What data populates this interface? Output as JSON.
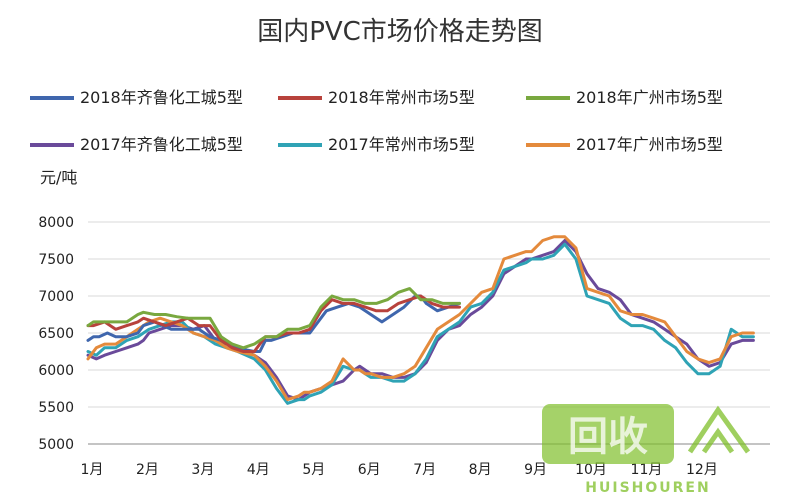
{
  "chart_data": {
    "type": "line",
    "title": "国内PVC市场价格走势图",
    "unit_label": "元/吨",
    "categories": [
      "1月",
      "2月",
      "3月",
      "4月",
      "5月",
      "6月",
      "7月",
      "8月",
      "9月",
      "10月",
      "11月",
      "12月"
    ],
    "ylim": [
      5000,
      8000
    ],
    "yticks": [
      5000,
      5500,
      6000,
      6500,
      7000,
      7500,
      8000
    ],
    "grid": true,
    "legend_position": "top",
    "series": [
      {
        "name": "2018年齐鲁化工城5型",
        "color": "#3f66ad",
        "x": [
          0.0,
          0.1,
          0.2,
          0.35,
          0.5,
          0.7,
          0.9,
          1.0,
          1.2,
          1.5,
          1.6,
          1.8,
          2.0,
          2.2,
          2.4,
          2.6,
          2.8,
          3.0,
          3.1,
          3.2,
          3.3,
          3.5,
          3.7,
          3.9,
          4.0,
          4.1,
          4.3,
          4.5,
          4.7,
          4.9,
          5.0,
          5.1,
          5.3,
          5.5,
          5.7,
          5.9,
          6.0,
          6.1,
          6.3,
          6.5,
          6.7
        ],
        "values": [
          6400,
          6450,
          6450,
          6500,
          6450,
          6450,
          6500,
          6600,
          6650,
          6550,
          6550,
          6550,
          6550,
          6450,
          6400,
          6350,
          6280,
          6250,
          6250,
          6400,
          6400,
          6450,
          6500,
          6500,
          6500,
          6600,
          6800,
          6850,
          6900,
          6850,
          6800,
          6750,
          6650,
          6750,
          6850,
          7000,
          7000,
          6900,
          6800,
          6850,
          6900
        ]
      },
      {
        "name": "2018年常州市场5型",
        "color": "#b8423c",
        "x": [
          0.0,
          0.1,
          0.3,
          0.5,
          0.7,
          0.9,
          1.0,
          1.2,
          1.4,
          1.6,
          1.8,
          2.0,
          2.2,
          2.4,
          2.6,
          2.8,
          3.0,
          3.2,
          3.4,
          3.6,
          3.8,
          4.0,
          4.2,
          4.4,
          4.6,
          4.8,
          5.0,
          5.2,
          5.4,
          5.6,
          5.8,
          6.0,
          6.2,
          6.4,
          6.6,
          6.7
        ],
        "values": [
          6600,
          6600,
          6650,
          6550,
          6600,
          6650,
          6700,
          6650,
          6600,
          6650,
          6700,
          6600,
          6600,
          6400,
          6300,
          6250,
          6250,
          6450,
          6450,
          6500,
          6500,
          6550,
          6800,
          6950,
          6900,
          6900,
          6850,
          6800,
          6800,
          6900,
          6950,
          7000,
          6900,
          6850,
          6850,
          6850
        ]
      },
      {
        "name": "2018年广州市场5型",
        "color": "#79a83f",
        "x": [
          0.0,
          0.1,
          0.3,
          0.5,
          0.7,
          0.9,
          1.0,
          1.2,
          1.4,
          1.6,
          1.8,
          2.0,
          2.2,
          2.4,
          2.6,
          2.8,
          3.0,
          3.2,
          3.4,
          3.6,
          3.8,
          4.0,
          4.2,
          4.4,
          4.6,
          4.8,
          5.0,
          5.2,
          5.4,
          5.6,
          5.8,
          6.0,
          6.2,
          6.4,
          6.6,
          6.7
        ],
        "values": [
          6600,
          6650,
          6650,
          6650,
          6650,
          6750,
          6780,
          6750,
          6750,
          6720,
          6700,
          6700,
          6700,
          6450,
          6350,
          6300,
          6350,
          6450,
          6450,
          6550,
          6550,
          6600,
          6850,
          7000,
          6950,
          6950,
          6900,
          6900,
          6950,
          7050,
          7100,
          6950,
          6950,
          6900,
          6900,
          6900
        ]
      }
    ],
    "series_2017": [
      {
        "name": "2017年齐鲁化工城5型",
        "color": "#6a4a9a",
        "x": [
          0.0,
          0.15,
          0.3,
          0.5,
          0.7,
          0.9,
          1.0,
          1.1,
          1.3,
          1.5,
          1.7,
          1.9,
          2.1,
          2.3,
          2.5,
          2.7,
          3.0,
          3.2,
          3.4,
          3.6,
          3.8,
          3.9,
          4.0,
          4.2,
          4.4,
          4.6,
          4.8,
          4.9,
          5.0,
          5.1,
          5.3,
          5.5,
          5.7,
          5.9,
          6.1,
          6.3,
          6.5,
          6.7,
          6.9,
          7.1,
          7.3,
          7.5,
          7.7,
          7.9,
          8.0,
          8.2,
          8.4,
          8.6,
          8.8,
          9.0,
          9.2,
          9.4,
          9.6,
          9.8,
          10.0,
          10.2,
          10.4,
          10.6,
          10.8,
          11.0,
          11.2,
          11.4,
          11.6,
          11.8,
          12.0
        ],
        "values": [
          6200,
          6150,
          6200,
          6250,
          6300,
          6350,
          6400,
          6500,
          6550,
          6600,
          6600,
          6550,
          6600,
          6400,
          6350,
          6300,
          6200,
          6100,
          5900,
          5650,
          5600,
          5650,
          5700,
          5750,
          5800,
          5850,
          6000,
          6050,
          6000,
          5950,
          5950,
          5900,
          5900,
          5950,
          6100,
          6400,
          6550,
          6600,
          6750,
          6850,
          7000,
          7300,
          7400,
          7500,
          7500,
          7550,
          7600,
          7750,
          7600,
          7300,
          7100,
          7050,
          6950,
          6750,
          6700,
          6650,
          6550,
          6450,
          6350,
          6150,
          6050,
          6100,
          6350,
          6400,
          6400
        ]
      },
      {
        "name": "2017年常州市场5型",
        "color": "#2fa3b5",
        "x": [
          0.0,
          0.15,
          0.3,
          0.5,
          0.7,
          0.9,
          1.0,
          1.1,
          1.3,
          1.5,
          1.7,
          1.9,
          2.1,
          2.3,
          2.5,
          2.7,
          3.0,
          3.2,
          3.4,
          3.6,
          3.8,
          3.9,
          4.0,
          4.2,
          4.4,
          4.6,
          4.8,
          4.9,
          5.0,
          5.1,
          5.3,
          5.5,
          5.7,
          5.9,
          6.1,
          6.3,
          6.5,
          6.7,
          6.9,
          7.1,
          7.3,
          7.5,
          7.7,
          7.9,
          8.0,
          8.2,
          8.4,
          8.6,
          8.8,
          9.0,
          9.2,
          9.4,
          9.6,
          9.8,
          10.0,
          10.2,
          10.4,
          10.6,
          10.8,
          11.0,
          11.2,
          11.4,
          11.6,
          11.8,
          12.0
        ],
        "values": [
          6250,
          6200,
          6300,
          6300,
          6400,
          6450,
          6500,
          6550,
          6600,
          6650,
          6650,
          6500,
          6450,
          6350,
          6300,
          6250,
          6150,
          6000,
          5750,
          5550,
          5600,
          5600,
          5650,
          5700,
          5800,
          6050,
          6000,
          6000,
          5950,
          5900,
          5900,
          5850,
          5850,
          5950,
          6150,
          6450,
          6550,
          6650,
          6850,
          6900,
          7050,
          7350,
          7400,
          7450,
          7500,
          7500,
          7550,
          7700,
          7500,
          7000,
          6950,
          6900,
          6700,
          6600,
          6600,
          6550,
          6400,
          6300,
          6100,
          5950,
          5950,
          6050,
          6550,
          6450,
          6450
        ]
      },
      {
        "name": "2017年广州市场5型",
        "color": "#e48a3c",
        "x": [
          0.0,
          0.15,
          0.3,
          0.5,
          0.7,
          0.9,
          1.0,
          1.1,
          1.3,
          1.5,
          1.7,
          1.9,
          2.1,
          2.3,
          2.5,
          2.7,
          3.0,
          3.2,
          3.4,
          3.6,
          3.8,
          3.9,
          4.0,
          4.2,
          4.4,
          4.6,
          4.8,
          4.9,
          5.0,
          5.1,
          5.3,
          5.5,
          5.7,
          5.9,
          6.1,
          6.3,
          6.5,
          6.7,
          6.9,
          7.1,
          7.3,
          7.5,
          7.7,
          7.9,
          8.0,
          8.2,
          8.4,
          8.6,
          8.8,
          9.0,
          9.2,
          9.4,
          9.6,
          9.8,
          10.0,
          10.2,
          10.4,
          10.6,
          10.8,
          11.0,
          11.2,
          11.4,
          11.6,
          11.8,
          12.0
        ],
        "values": [
          6150,
          6300,
          6350,
          6350,
          6450,
          6550,
          6600,
          6650,
          6700,
          6650,
          6600,
          6500,
          6450,
          6400,
          6300,
          6250,
          6200,
          6050,
          5850,
          5600,
          5650,
          5700,
          5700,
          5750,
          5850,
          6150,
          6000,
          6000,
          5950,
          5950,
          5900,
          5900,
          5950,
          6050,
          6300,
          6550,
          6650,
          6750,
          6900,
          7050,
          7100,
          7500,
          7550,
          7600,
          7600,
          7750,
          7800,
          7800,
          7650,
          7100,
          7050,
          7000,
          6800,
          6750,
          6750,
          6700,
          6650,
          6450,
          6250,
          6150,
          6100,
          6150,
          6450,
          6500,
          6500
        ]
      }
    ]
  },
  "watermark": {
    "main": "回收",
    "sub": "HUISHOUREN"
  }
}
